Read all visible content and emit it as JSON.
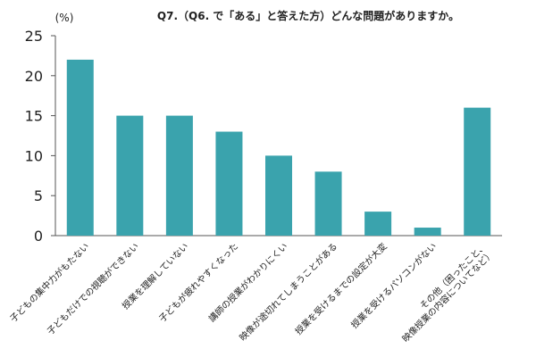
{
  "chart_data": {
    "type": "bar",
    "title": "Q7.（Q6. で「ある」と答えた方）どんな問題がありますか。",
    "ylabel": "(%)",
    "ylim": [
      0,
      25
    ],
    "yticks": [
      "0",
      "5",
      "10",
      "15",
      "20",
      "25"
    ],
    "categories": [
      [
        "子どもの集中力がもたない"
      ],
      [
        "子どもだけでの視聴ができない"
      ],
      [
        "授業を理解していない"
      ],
      [
        "子どもが疲れやすくなった"
      ],
      [
        "講師の授業がわかりにくい"
      ],
      [
        "映像が途切れてしまうことがある"
      ],
      [
        "授業を受けるまでの設定が大変"
      ],
      [
        "授業を受けるパソコンがない"
      ],
      [
        "その他（困ったこと、",
        "映像授業の内容についてなど）"
      ]
    ],
    "values": [
      22,
      15,
      15,
      13,
      10,
      8,
      3,
      1,
      16
    ],
    "bar_color": "#3aa3ad",
    "grid": false
  }
}
